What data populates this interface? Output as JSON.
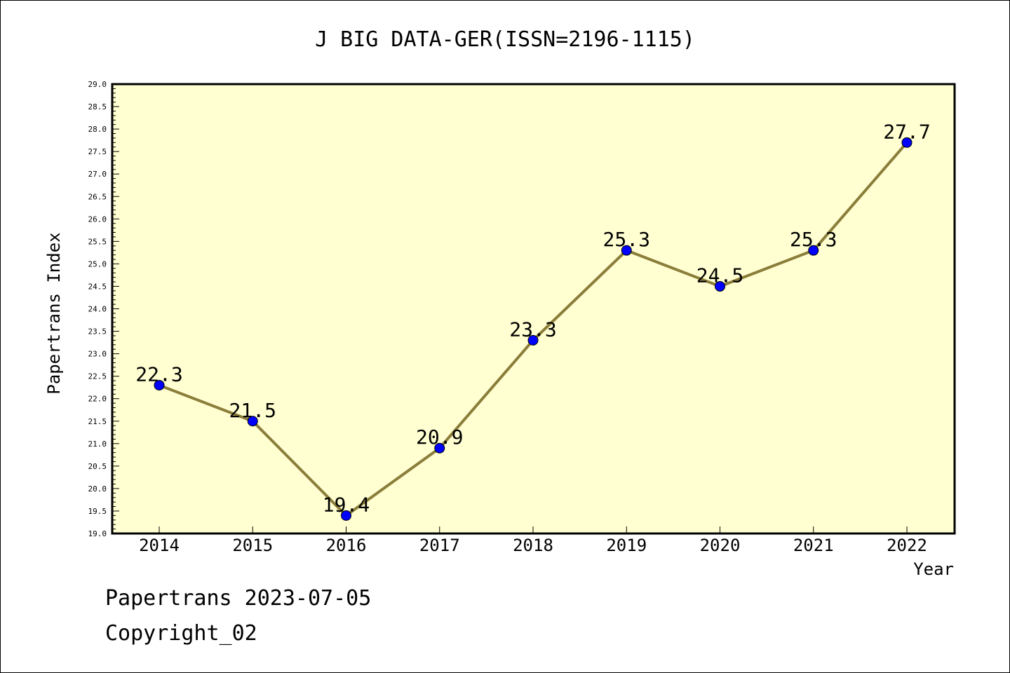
{
  "chart_data": {
    "type": "line",
    "title": "J BIG DATA-GER(ISSN=2196-1115)",
    "xlabel": "Year",
    "ylabel": "Papertrans Index",
    "categories": [
      "2014",
      "2015",
      "2016",
      "2017",
      "2018",
      "2019",
      "2020",
      "2021",
      "2022"
    ],
    "series": [
      {
        "values": [
          22.3,
          21.5,
          19.4,
          20.9,
          23.3,
          25.3,
          24.5,
          25.3,
          27.7
        ]
      }
    ],
    "data_labels": [
      "22.3",
      "21.5",
      "19.4",
      "20.9",
      "23.3",
      "25.3",
      "24.5",
      "25.3",
      "27.7"
    ],
    "ylim": [
      19.0,
      29.0
    ],
    "y_ticks": [
      "19.0",
      "19.5",
      "20.0",
      "20.5",
      "21.0",
      "21.5",
      "22.0",
      "22.5",
      "23.0",
      "23.5",
      "24.0",
      "24.5",
      "25.0",
      "25.5",
      "26.0",
      "26.5",
      "27.0",
      "27.5",
      "28.0",
      "28.5",
      "29.0"
    ],
    "grid": false,
    "legend": "none",
    "colors": {
      "plot_background": "#ffffd2",
      "line": "#8b7d3a",
      "marker": "#0000ff"
    }
  },
  "footer": {
    "line1": "Papertrans 2023-07-05",
    "line2": "Copyright_02"
  }
}
